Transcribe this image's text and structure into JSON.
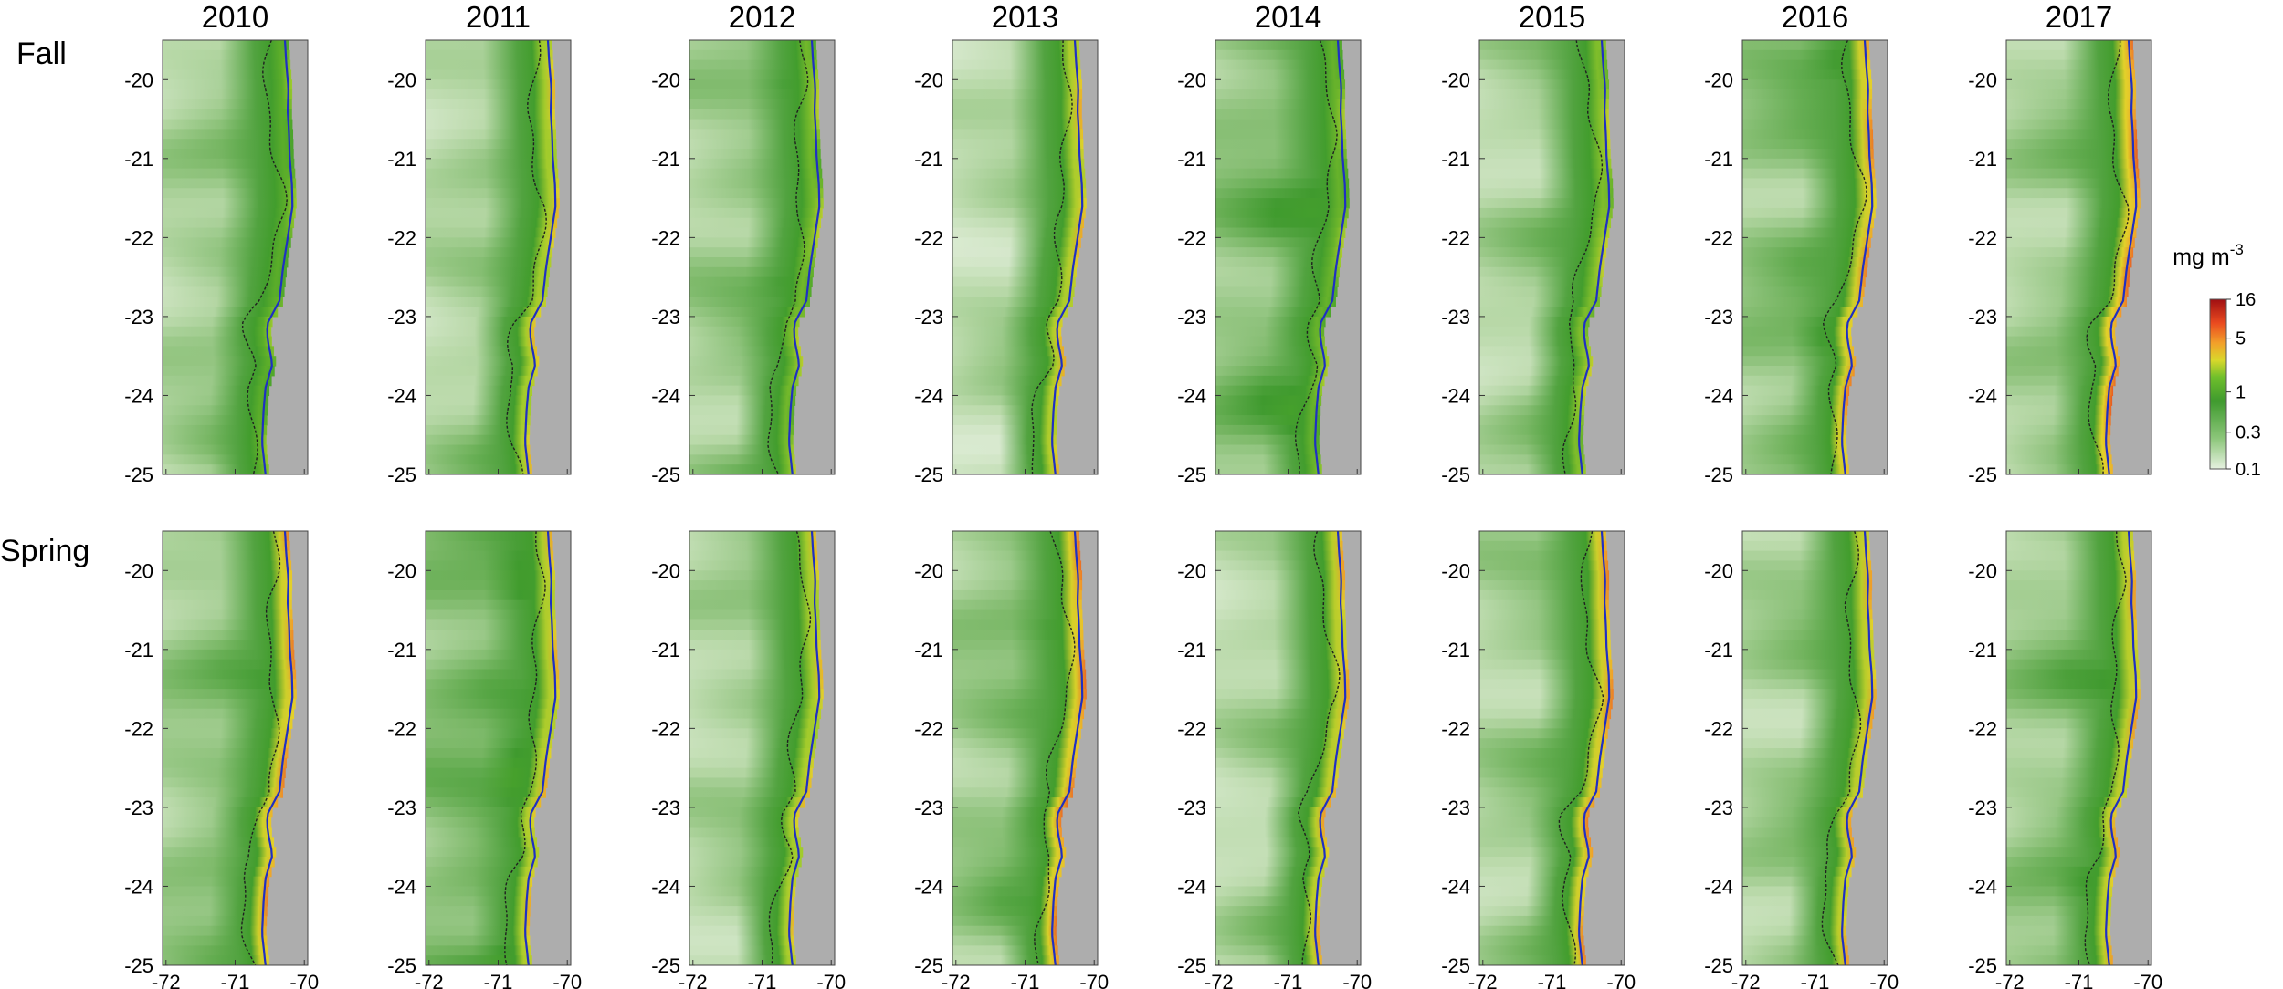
{
  "chart_data": {
    "type": "heatmap",
    "description_units": "mg m-3",
    "years": [
      "2010",
      "2011",
      "2012",
      "2013",
      "2014",
      "2015",
      "2016",
      "2017"
    ],
    "seasons": [
      "Fall",
      "Spring"
    ],
    "x_ticks": [
      "-72",
      "-71",
      "-70"
    ],
    "x_tick_values": [
      -72,
      -71,
      -70
    ],
    "y_ticks": [
      "-20",
      "-21",
      "-22",
      "-23",
      "-24",
      "-25"
    ],
    "y_tick_values": [
      -20,
      -21,
      -22,
      -23,
      -24,
      -25
    ],
    "xlim": [
      -72.05,
      -69.95
    ],
    "ylim": [
      -25.0,
      -19.5
    ],
    "colorbar": {
      "label_main": "mg m",
      "label_sup": "-3",
      "ticks": [
        "16",
        "5",
        "1",
        "0.3",
        "0.1"
      ],
      "tick_values": [
        16,
        5,
        1,
        0.3,
        0.1
      ],
      "scale": "log",
      "range": [
        0.1,
        16
      ]
    },
    "colors": {
      "land": "#adadad",
      "coast_line": "#1f2fc4",
      "contour_line": "#202020",
      "low": "#d8ebcf",
      "mid": "#3f9a2e",
      "high": "#b80f0f"
    },
    "panels": [
      {
        "season": "Fall",
        "year": "2010",
        "offshore_level": 0.2,
        "coastal_peak": 0.58
      },
      {
        "season": "Fall",
        "year": "2011",
        "offshore_level": 0.18,
        "coastal_peak": 0.7
      },
      {
        "season": "Fall",
        "year": "2012",
        "offshore_level": 0.22,
        "coastal_peak": 0.62
      },
      {
        "season": "Fall",
        "year": "2013",
        "offshore_level": 0.14,
        "coastal_peak": 0.72
      },
      {
        "season": "Fall",
        "year": "2014",
        "offshore_level": 0.28,
        "coastal_peak": 0.6
      },
      {
        "season": "Fall",
        "year": "2015",
        "offshore_level": 0.18,
        "coastal_peak": 0.64
      },
      {
        "season": "Fall",
        "year": "2016",
        "offshore_level": 0.26,
        "coastal_peak": 0.78
      },
      {
        "season": "Fall",
        "year": "2017",
        "offshore_level": 0.2,
        "coastal_peak": 0.82
      },
      {
        "season": "Spring",
        "year": "2010",
        "offshore_level": 0.24,
        "coastal_peak": 0.78
      },
      {
        "season": "Spring",
        "year": "2011",
        "offshore_level": 0.3,
        "coastal_peak": 0.72
      },
      {
        "season": "Spring",
        "year": "2012",
        "offshore_level": 0.18,
        "coastal_peak": 0.7
      },
      {
        "season": "Spring",
        "year": "2013",
        "offshore_level": 0.24,
        "coastal_peak": 0.8
      },
      {
        "season": "Spring",
        "year": "2014",
        "offshore_level": 0.16,
        "coastal_peak": 0.74
      },
      {
        "season": "Spring",
        "year": "2015",
        "offshore_level": 0.2,
        "coastal_peak": 0.78
      },
      {
        "season": "Spring",
        "year": "2016",
        "offshore_level": 0.2,
        "coastal_peak": 0.74
      },
      {
        "season": "Spring",
        "year": "2017",
        "offshore_level": 0.24,
        "coastal_peak": 0.74
      }
    ],
    "coastline": [
      {
        "lat": -19.5,
        "lon": -70.22
      },
      {
        "lat": -19.8,
        "lon": -70.2
      },
      {
        "lat": -20.1,
        "lon": -70.17
      },
      {
        "lat": -20.4,
        "lon": -70.18
      },
      {
        "lat": -20.7,
        "lon": -70.16
      },
      {
        "lat": -21.0,
        "lon": -70.15
      },
      {
        "lat": -21.3,
        "lon": -70.12
      },
      {
        "lat": -21.6,
        "lon": -70.11
      },
      {
        "lat": -22.0,
        "lon": -70.18
      },
      {
        "lat": -22.4,
        "lon": -70.25
      },
      {
        "lat": -22.8,
        "lon": -70.3
      },
      {
        "lat": -23.1,
        "lon": -70.48
      },
      {
        "lat": -23.3,
        "lon": -70.47
      },
      {
        "lat": -23.6,
        "lon": -70.4
      },
      {
        "lat": -23.9,
        "lon": -70.5
      },
      {
        "lat": -24.2,
        "lon": -70.53
      },
      {
        "lat": -24.6,
        "lon": -70.55
      },
      {
        "lat": -25.0,
        "lon": -70.5
      }
    ]
  }
}
